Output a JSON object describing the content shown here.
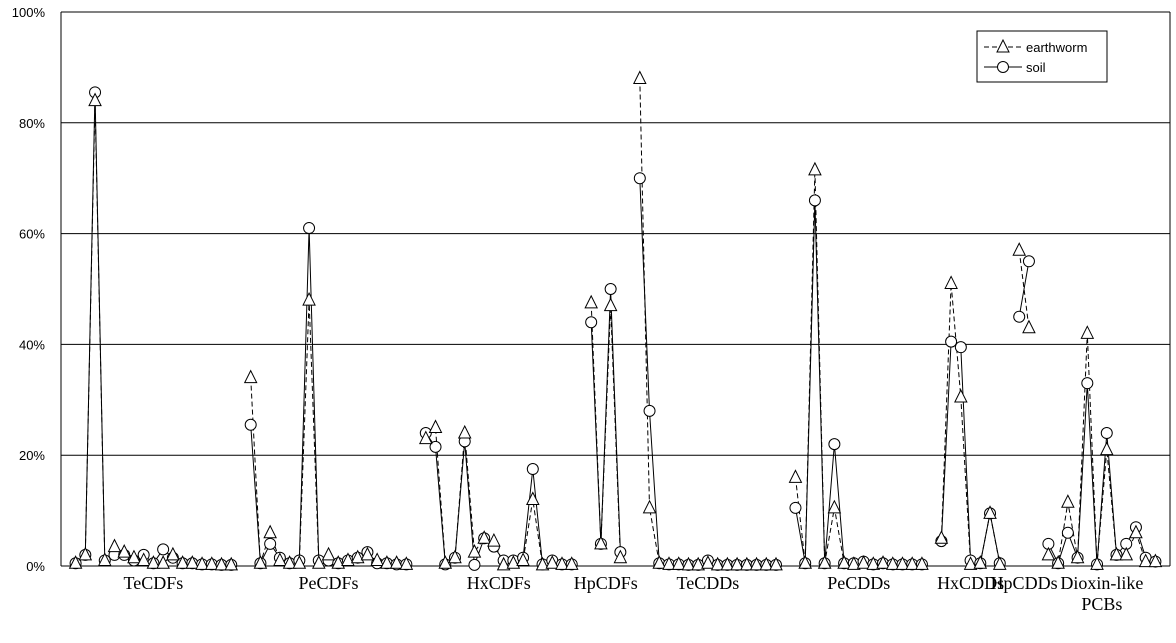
{
  "chart_data": {
    "type": "line",
    "ylim": [
      0,
      100
    ],
    "yticks": [
      0,
      20,
      40,
      60,
      80,
      100
    ],
    "ytick_labels": [
      "0%",
      "20%",
      "40%",
      "60%",
      "80%",
      "100%"
    ],
    "grid": true,
    "legend_position": "top-right",
    "groups": [
      {
        "label": "TeCDFs",
        "label_line2": "",
        "n": 17,
        "earthworm": [
          0.5,
          2,
          84,
          1,
          3.5,
          2.5,
          1.5,
          1,
          0.5,
          0.5,
          2,
          0.5,
          0.5,
          0.3,
          0.3,
          0.2,
          0.2
        ],
        "soil": [
          0.5,
          2,
          85.5,
          1,
          2,
          2,
          1,
          2,
          0.5,
          3,
          1.5,
          0.5,
          0.5,
          0.3,
          0.3,
          0.2,
          0.2
        ]
      },
      {
        "label": "PeCDFs",
        "label_line2": "",
        "n": 17,
        "earthworm": [
          34,
          0.5,
          6,
          1,
          0.5,
          0.5,
          48,
          0.5,
          2,
          0.5,
          1,
          1.5,
          2,
          1,
          0.5,
          0.5,
          0.3
        ],
        "soil": [
          25.5,
          0.5,
          4,
          1.5,
          0.5,
          1,
          61,
          1,
          1,
          0.5,
          1,
          1.5,
          2.5,
          0.5,
          0.5,
          0.3,
          0.3
        ]
      },
      {
        "label": "HxCDFs",
        "label_line2": "",
        "n": 16,
        "earthworm": [
          23,
          25,
          0.5,
          1.5,
          24,
          2.5,
          5,
          4.5,
          0.2,
          0.5,
          1,
          12,
          0.2,
          0.5,
          0.3,
          0.3
        ],
        "soil": [
          24,
          21.5,
          0.3,
          1.5,
          22.5,
          0.2,
          5,
          3.5,
          1,
          1,
          1.5,
          17.5,
          0.3,
          1,
          0.3,
          0.3
        ]
      },
      {
        "label": "HpCDFs",
        "label_line2": "",
        "n": 4,
        "earthworm": [
          47.5,
          4,
          47,
          1.5
        ],
        "soil": [
          44,
          4,
          50,
          2.5
        ]
      },
      {
        "label": "TeCDDs",
        "label_line2": "",
        "n": 15,
        "earthworm": [
          88,
          10.5,
          0.5,
          0.3,
          0.3,
          0.2,
          0.2,
          0.5,
          0.2,
          0.2,
          0.2,
          0.2,
          0.2,
          0.2,
          0.2
        ],
        "soil": [
          70,
          28,
          0.5,
          0.3,
          0.3,
          0.2,
          0.2,
          1,
          0.2,
          0.2,
          0.2,
          0.2,
          0.2,
          0.2,
          0.2
        ]
      },
      {
        "label": "PeCDDs",
        "label_line2": "",
        "n": 14,
        "earthworm": [
          16,
          0.5,
          71.5,
          0.5,
          10.5,
          0.5,
          0.3,
          0.5,
          0.3,
          0.5,
          0.3,
          0.3,
          0.3,
          0.3
        ],
        "soil": [
          10.5,
          0.5,
          66,
          0.5,
          22,
          0.5,
          0.5,
          0.8,
          0.3,
          0.5,
          0.3,
          0.3,
          0.3,
          0.3
        ]
      },
      {
        "label": "HxCDDs",
        "label_line2": "",
        "n": 7,
        "earthworm": [
          5,
          51,
          30.5,
          0.3,
          0.5,
          9.5,
          0.3
        ],
        "soil": [
          4.5,
          40.5,
          39.5,
          1,
          0.5,
          9.5,
          0.5
        ]
      },
      {
        "label": "HpCDDs",
        "label_line2": "",
        "n": 2,
        "earthworm": [
          57,
          43
        ],
        "soil": [
          45,
          55
        ]
      },
      {
        "label": "Dioxin-like",
        "label_line2": "PCBs",
        "n": 12,
        "earthworm": [
          2,
          0.5,
          11.5,
          1.5,
          42,
          0.3,
          21,
          2,
          2,
          6,
          0.8,
          0.8
        ],
        "soil": [
          4,
          0.5,
          6,
          1.5,
          33,
          0.3,
          24,
          2,
          4,
          7,
          1.5,
          0.8
        ]
      }
    ],
    "series": [
      {
        "name": "earthworm",
        "marker": "triangle",
        "line_style": "dashed"
      },
      {
        "name": "soil",
        "marker": "circle",
        "line_style": "solid"
      }
    ]
  }
}
